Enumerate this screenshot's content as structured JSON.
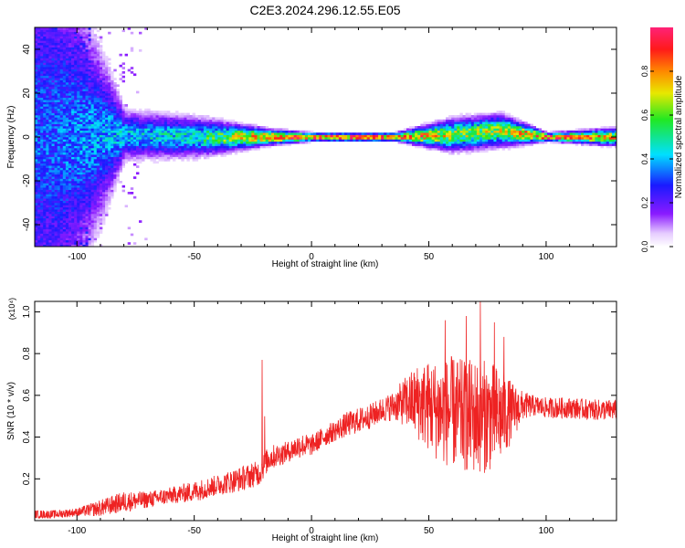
{
  "title": "C2E3.2024.296.12.55.E05",
  "colors": {
    "snr_line": "#ee2222",
    "axis": "#000000",
    "background": "#ffffff"
  },
  "chart_data": [
    {
      "type": "heatmap",
      "xlabel": "Height of straight line (km)",
      "ylabel": "Frequency (Hz)",
      "xlim": [
        -118,
        130
      ],
      "ylim": [
        -50,
        50
      ],
      "x_ticks": [
        -100,
        -50,
        0,
        50,
        100
      ],
      "y_ticks": [
        -40,
        -20,
        0,
        20,
        40
      ],
      "x_tick_labels": [
        "-100",
        "-50",
        "0",
        "50",
        "100"
      ],
      "y_tick_labels": [
        "-40",
        "-20",
        "0",
        "20",
        "40"
      ],
      "colorbar": {
        "label": "Normalized spectral amplitude",
        "range": [
          0,
          1
        ],
        "ticks": [
          0.0,
          0.2,
          0.4,
          0.6,
          0.8
        ],
        "tick_labels": [
          "0.0",
          "0.2",
          "0.4",
          "0.6",
          "0.8"
        ],
        "colormap": "rainbow (violet → red → pink)"
      },
      "description_points": [
        {
          "x": -110,
          "center_hz": 0,
          "spread_hz": 50,
          "peak_amp": 0.35
        },
        {
          "x": -80,
          "center_hz": 1,
          "spread_hz": 6,
          "peak_amp": 0.45
        },
        {
          "x": -50,
          "center_hz": 0,
          "spread_hz": 5,
          "peak_amp": 0.5
        },
        {
          "x": -20,
          "center_hz": 0,
          "spread_hz": 2,
          "peak_amp": 0.9
        },
        {
          "x": 0,
          "center_hz": 0,
          "spread_hz": 1,
          "peak_amp": 0.98
        },
        {
          "x": 35,
          "center_hz": 0,
          "spread_hz": 1,
          "peak_amp": 0.98
        },
        {
          "x": 60,
          "center_hz": 1,
          "spread_hz": 4,
          "peak_amp": 0.7
        },
        {
          "x": 80,
          "center_hz": 3,
          "spread_hz": 4,
          "peak_amp": 0.7
        },
        {
          "x": 100,
          "center_hz": 0,
          "spread_hz": 1,
          "peak_amp": 0.98
        },
        {
          "x": 125,
          "center_hz": 0,
          "spread_hz": 2,
          "peak_amp": 0.85
        }
      ]
    },
    {
      "type": "line",
      "xlabel": "Height of straight line (km)",
      "ylabel": "SNR (10 * v/v)",
      "y_scale_label": "(x10⁴)",
      "xlim": [
        -118,
        130
      ],
      "ylim": [
        0,
        1.05
      ],
      "x_ticks": [
        -100,
        -50,
        0,
        50,
        100
      ],
      "y_ticks": [
        0.2,
        0.4,
        0.6,
        0.8,
        1.0
      ],
      "x_tick_labels": [
        "-100",
        "-50",
        "0",
        "50",
        "100"
      ],
      "y_tick_labels": [
        "0.2",
        "0.4",
        "0.6",
        "0.8",
        "1.0"
      ],
      "series": [
        {
          "color": "#ee2222",
          "x": [
            -118,
            -110,
            -100,
            -90,
            -80,
            -70,
            -60,
            -50,
            -40,
            -30,
            -22,
            -20,
            -18,
            -10,
            -5,
            0,
            5,
            10,
            15,
            20,
            25,
            30,
            35,
            40,
            45,
            50,
            55,
            60,
            65,
            70,
            75,
            80,
            85,
            90,
            95,
            100,
            110,
            120,
            130
          ],
          "y": [
            0.03,
            0.03,
            0.04,
            0.06,
            0.09,
            0.1,
            0.12,
            0.14,
            0.17,
            0.2,
            0.23,
            0.27,
            0.3,
            0.33,
            0.36,
            0.36,
            0.4,
            0.43,
            0.46,
            0.48,
            0.5,
            0.53,
            0.55,
            0.57,
            0.57,
            0.55,
            0.52,
            0.52,
            0.5,
            0.5,
            0.5,
            0.5,
            0.52,
            0.55,
            0.55,
            0.54,
            0.54,
            0.53,
            0.53
          ],
          "noise": [
            0.02,
            0.02,
            0.02,
            0.04,
            0.05,
            0.04,
            0.04,
            0.05,
            0.05,
            0.06,
            0.06,
            0.06,
            0.06,
            0.05,
            0.06,
            0.05,
            0.05,
            0.05,
            0.06,
            0.06,
            0.06,
            0.06,
            0.07,
            0.12,
            0.18,
            0.22,
            0.25,
            0.27,
            0.27,
            0.28,
            0.27,
            0.24,
            0.15,
            0.07,
            0.05,
            0.05,
            0.05,
            0.05,
            0.05
          ]
        }
      ],
      "spikes": [
        {
          "x": -21,
          "y": 0.77
        },
        {
          "x": -20,
          "y": 0.5
        },
        {
          "x": 57,
          "y": 0.96
        },
        {
          "x": 66,
          "y": 0.98
        },
        {
          "x": 72,
          "y": 1.05
        },
        {
          "x": 78,
          "y": 0.95
        },
        {
          "x": 82,
          "y": 0.88
        }
      ]
    }
  ]
}
